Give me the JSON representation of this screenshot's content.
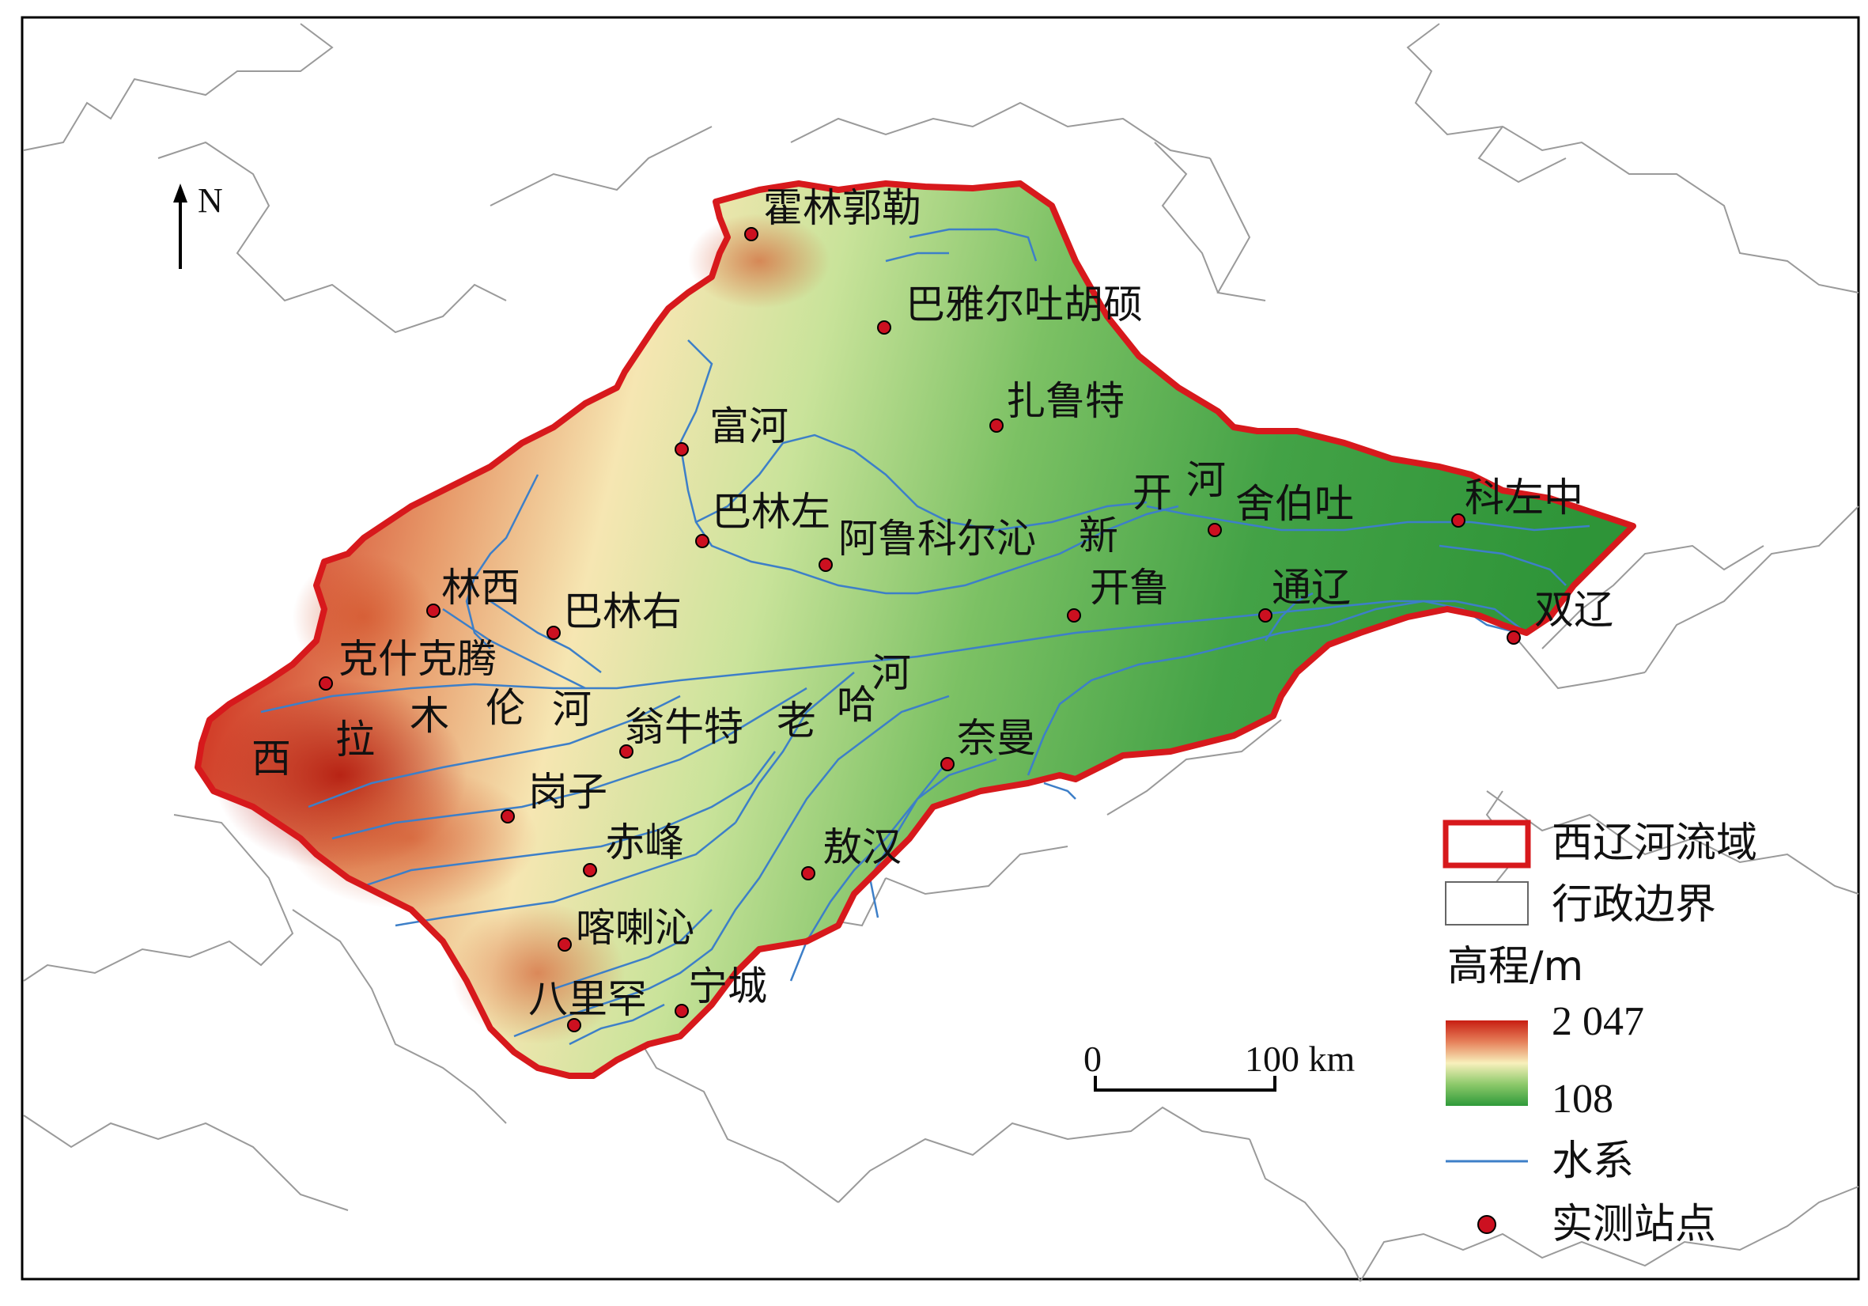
{
  "north_label": "N",
  "stations": [
    {
      "name": "霍林郭勒"
    },
    {
      "name": "巴雅尔吐胡硕"
    },
    {
      "name": "扎鲁特"
    },
    {
      "name": "富河"
    },
    {
      "name": "巴林左"
    },
    {
      "name": "阿鲁科尔沁"
    },
    {
      "name": "舍伯吐"
    },
    {
      "name": "科左中"
    },
    {
      "name": "林西"
    },
    {
      "name": "巴林右"
    },
    {
      "name": "克什克腾"
    },
    {
      "name": "开鲁"
    },
    {
      "name": "通辽"
    },
    {
      "name": "双辽"
    },
    {
      "name": "翁牛特"
    },
    {
      "name": "奈曼"
    },
    {
      "name": "岗子"
    },
    {
      "name": "赤峰"
    },
    {
      "name": "敖汉"
    },
    {
      "name": "喀喇沁"
    },
    {
      "name": "宁城"
    },
    {
      "name": "八里罕"
    }
  ],
  "river_labels": [
    {
      "text": "西"
    },
    {
      "text": "拉"
    },
    {
      "text": "木"
    },
    {
      "text": "伦"
    },
    {
      "text": "河"
    },
    {
      "text": "老"
    },
    {
      "text": "哈"
    },
    {
      "text": "河"
    },
    {
      "text": "新"
    },
    {
      "text": "开"
    },
    {
      "text": "河"
    }
  ],
  "scale": {
    "start": "0",
    "end": "100 km"
  },
  "legend": {
    "basin": "西辽河流域",
    "admin": "行政边界",
    "elevation_title": "高程/m",
    "elev_max": "2 047",
    "elev_min": "108",
    "rivers": "水系",
    "stations": "实测站点"
  },
  "colors": {
    "basin_outline": "#d7191c",
    "river": "#3d7fc8",
    "station": "#cc1020",
    "elev_high": "#c81e12",
    "elev_mid": "#f7f0b8",
    "elev_low": "#2f9a3a"
  }
}
